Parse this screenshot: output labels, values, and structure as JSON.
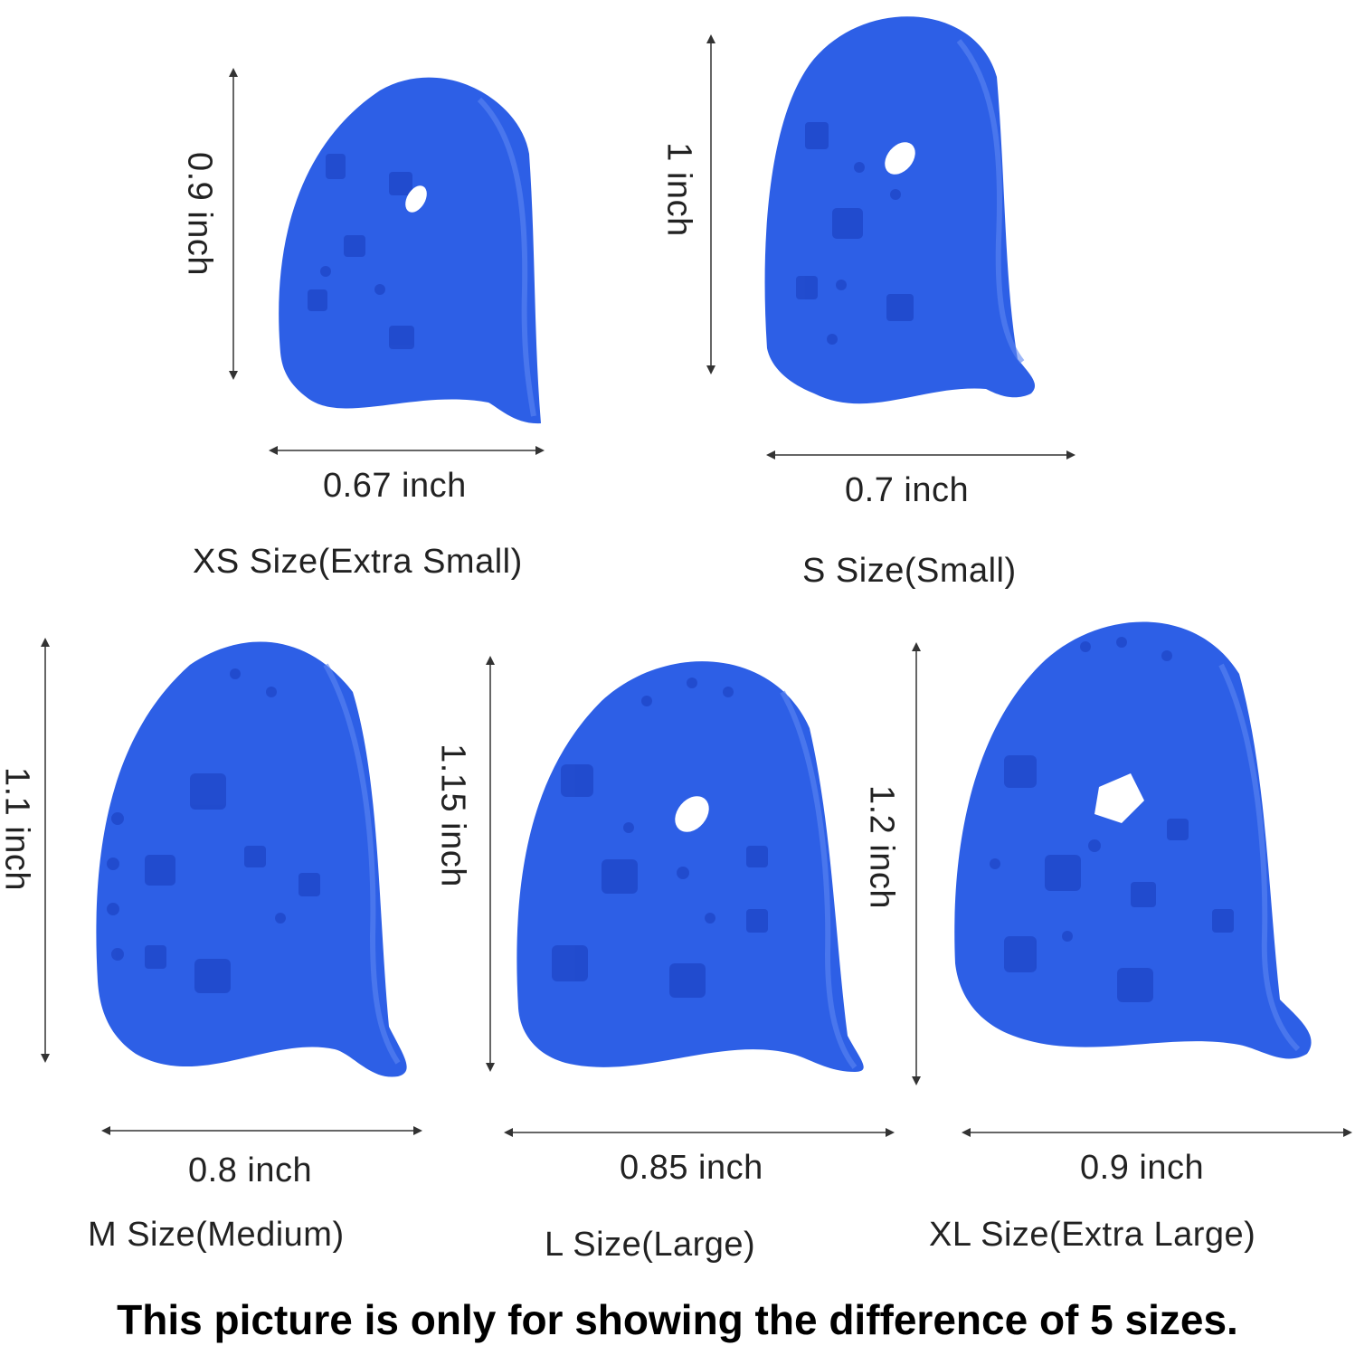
{
  "colors": {
    "thimble": "#2d5fe6",
    "thimble_dark": "#1f47c9",
    "thimble_light": "#5b86f2",
    "arrow": "#333333",
    "text": "#222222"
  },
  "items": [
    {
      "size_label": "XS Size(Extra Small)",
      "height": "0.9 inch",
      "width": "0.67 inch",
      "icon": "thimble-icon"
    },
    {
      "size_label": "S Size(Small)",
      "height": "1 inch",
      "width": "0.7 inch",
      "icon": "thimble-icon"
    },
    {
      "size_label": "M Size(Medium)",
      "height": "1.1 inch",
      "width": "0.8 inch",
      "icon": "thimble-icon"
    },
    {
      "size_label": "L Size(Large)",
      "height": "1.15 inch",
      "width": "0.85 inch",
      "icon": "thimble-icon"
    },
    {
      "size_label": "XL Size(Extra Large)",
      "height": "1.2 inch",
      "width": "0.9 inch",
      "icon": "thimble-icon"
    }
  ],
  "footer": "This picture is only for showing the difference of 5 sizes."
}
